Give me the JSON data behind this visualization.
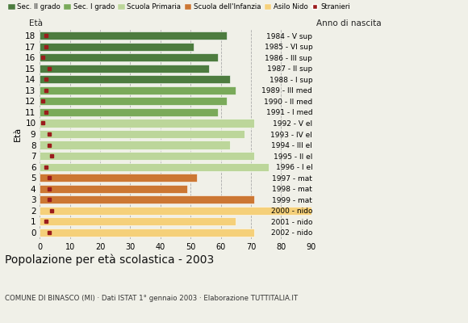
{
  "ages": [
    18,
    17,
    16,
    15,
    14,
    13,
    12,
    11,
    10,
    9,
    8,
    7,
    6,
    5,
    4,
    3,
    2,
    1,
    0
  ],
  "bar_values": [
    62,
    51,
    59,
    56,
    63,
    65,
    62,
    59,
    71,
    68,
    63,
    71,
    76,
    52,
    49,
    71,
    90,
    65,
    71
  ],
  "stranieri": [
    2,
    2,
    1,
    3,
    2,
    2,
    1,
    2,
    1,
    3,
    3,
    4,
    2,
    3,
    3,
    3,
    4,
    2,
    3
  ],
  "anno_nascita": [
    "1984 - V sup",
    "1985 - VI sup",
    "1986 - III sup",
    "1987 - II sup",
    "1988 - I sup",
    "1989 - III med",
    "1990 - II med",
    "1991 - I med",
    "1992 - V el",
    "1993 - IV el",
    "1994 - III el",
    "1995 - II el",
    "1996 - I el",
    "1997 - mat",
    "1998 - mat",
    "1999 - mat",
    "2000 - nido",
    "2001 - nido",
    "2002 - nido"
  ],
  "colors": {
    "sec2": "#4d7c3f",
    "sec1": "#7aaa5a",
    "primaria": "#bcd69a",
    "infanzia": "#cc7733",
    "nido": "#f5d07a",
    "stranieri": "#9b1c1c"
  },
  "category_colors": [
    "sec2",
    "sec2",
    "sec2",
    "sec2",
    "sec2",
    "sec1",
    "sec1",
    "sec1",
    "primaria",
    "primaria",
    "primaria",
    "primaria",
    "primaria",
    "infanzia",
    "infanzia",
    "infanzia",
    "nido",
    "nido",
    "nido"
  ],
  "legend_labels": [
    "Sec. II grado",
    "Sec. I grado",
    "Scuola Primaria",
    "Scuola dell'Infanzia",
    "Asilo Nido",
    "Stranieri"
  ],
  "legend_colors": [
    "#4d7c3f",
    "#7aaa5a",
    "#bcd69a",
    "#cc7733",
    "#f5d07a",
    "#9b1c1c"
  ],
  "title": "Popolazione per età scolastica - 2003",
  "subtitle": "COMUNE DI BINASCO (MI) · Dati ISTAT 1° gennaio 2003 · Elaborazione TUTTITALIA.IT",
  "xlabel_eta": "Età",
  "xlabel_anno": "Anno di nascita",
  "xlim": [
    0,
    90
  ],
  "xticks": [
    0,
    10,
    20,
    30,
    40,
    50,
    60,
    70,
    80,
    90
  ],
  "bg_color": "#f0f0e8"
}
